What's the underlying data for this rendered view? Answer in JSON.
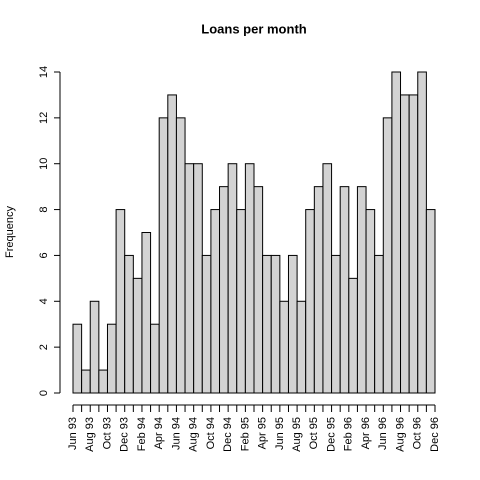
{
  "chart_data": {
    "type": "histogram",
    "title": "Loans per month",
    "ylabel": "Frequency",
    "bins": [
      "Jun 93",
      null,
      "Aug 93",
      null,
      "Oct 93",
      null,
      "Dec 93",
      null,
      "Feb 94",
      null,
      "Apr 94",
      null,
      "Jun 94",
      null,
      "Aug 94",
      null,
      "Oct 94",
      null,
      "Dec 94",
      null,
      "Feb 95",
      null,
      "Apr 95",
      null,
      "Jun 95",
      null,
      "Aug 95",
      null,
      "Oct 95",
      null,
      "Dec 95",
      null,
      "Feb 96",
      null,
      "Apr 96",
      null,
      "Jun 96",
      null,
      "Aug 96",
      null,
      "Oct 96",
      null,
      "Dec 96"
    ],
    "counts": [
      3,
      1,
      4,
      1,
      3,
      8,
      6,
      5,
      7,
      3,
      12,
      13,
      12,
      10,
      10,
      6,
      8,
      9,
      10,
      8,
      10,
      9,
      6,
      6,
      4,
      6,
      4,
      8,
      9,
      10,
      6,
      9,
      5,
      9,
      8,
      6,
      12,
      14,
      13,
      13,
      14,
      8
    ],
    "color": "#d3d3d3",
    "ylim": [
      0,
      14
    ],
    "yticks": [
      0,
      2,
      4,
      6,
      8,
      10,
      12,
      14
    ]
  }
}
